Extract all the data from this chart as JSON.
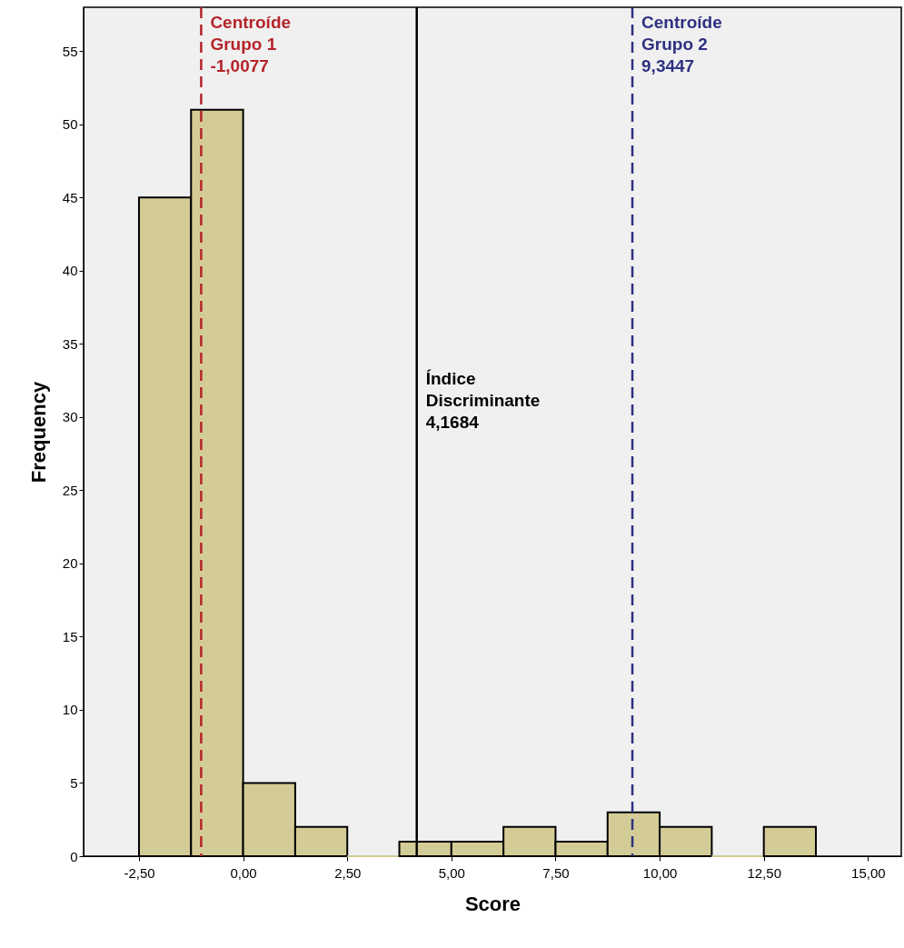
{
  "chart_data": {
    "type": "histogram",
    "xlabel": "Score",
    "ylabel": "Frequency",
    "bins": [
      -2.5,
      -1.25,
      0,
      1.25,
      2.5,
      3.75,
      5,
      6.25,
      7.5,
      8.75,
      10,
      11.25,
      12.5,
      13.75
    ],
    "values": [
      45,
      51,
      5,
      2,
      0,
      1,
      1,
      2,
      1,
      3,
      2,
      0,
      2
    ],
    "color": "#d4cc96",
    "xlim": [
      -3.83,
      15.8
    ],
    "xticks": [
      {
        "value": -2.5,
        "label": "-2,50"
      },
      {
        "value": 0,
        "label": "0,00"
      },
      {
        "value": 2.5,
        "label": "2,50"
      },
      {
        "value": 5,
        "label": "5,00"
      },
      {
        "value": 7.5,
        "label": "7,50"
      },
      {
        "value": 10,
        "label": "10,00"
      },
      {
        "value": 12.5,
        "label": "12,50"
      },
      {
        "value": 15,
        "label": "15,00"
      }
    ],
    "ylim": [
      0,
      58
    ],
    "yticks": [
      0,
      5,
      10,
      15,
      20,
      25,
      30,
      35,
      40,
      45,
      50,
      55
    ],
    "grid": false,
    "ref_lines": [
      {
        "axis": "x",
        "value": -1.0077,
        "label": "Centroíde\nGrupo 1\n-1,0077",
        "color": "#b5242a",
        "line_style": "dashed"
      },
      {
        "axis": "x",
        "value": 4.1684,
        "label": "Índice\nDiscriminante\n4,1684",
        "color": "#000000",
        "line_style": "solid"
      },
      {
        "axis": "x",
        "value": 9.3447,
        "label": "Centroíde\nGrupo 2\n9,3447",
        "color": "#2e3180",
        "line_style": "dashed"
      }
    ]
  }
}
